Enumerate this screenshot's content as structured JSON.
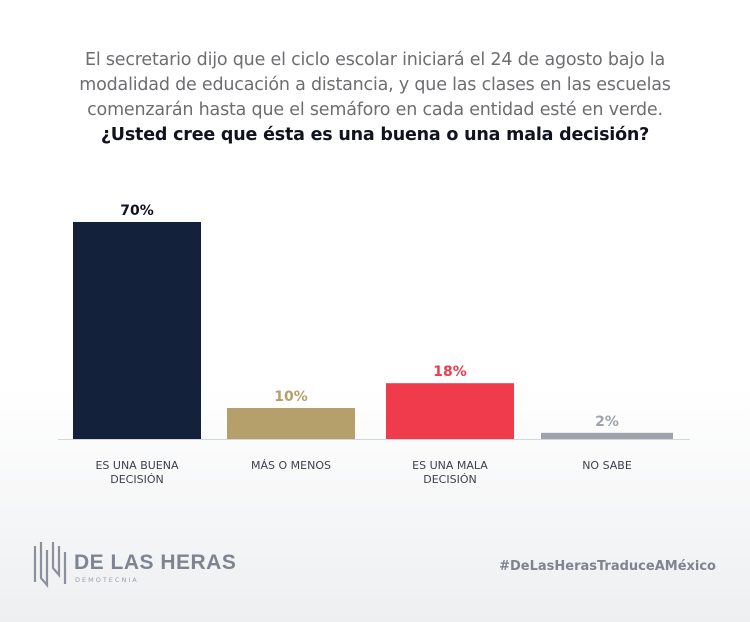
{
  "header": {
    "intro_line1": "El secretario dijo que el ciclo escolar iniciará el 24 de agosto bajo la",
    "intro_line2": "modalidad de educación a distancia, y que las clases en las escuelas",
    "intro_line3": "comenzarán hasta que el semáforo en cada entidad esté en verde.",
    "question": "¿Usted cree que ésta es una buena o una mala decisión?"
  },
  "chart_data": {
    "type": "bar",
    "categories": [
      [
        "ES UNA BUENA",
        "DECISIÓN"
      ],
      [
        "MÁS O MENOS"
      ],
      [
        "ES UNA MALA",
        "DECISIÓN"
      ],
      [
        "NO SABE"
      ]
    ],
    "values": [
      70,
      10,
      18,
      2
    ],
    "labels": [
      "70%",
      "10%",
      "18%",
      "2%"
    ],
    "colors": [
      "#13213a",
      "#b5a06c",
      "#ef3b4c",
      "#9ea3ac"
    ],
    "label_colors": [
      "#10121e",
      "#b5a06c",
      "#ef3b4c",
      "#9ea3ac"
    ],
    "ylim": [
      0,
      70
    ],
    "grid": false,
    "axis_color": "#d3d6db"
  },
  "footer": {
    "brand": "DE LAS HERAS",
    "brand_sub": "DEMOTECNIA",
    "hashtag": "#DeLasHerasTraduceAMéxico",
    "brand_color": "#7e8591"
  }
}
